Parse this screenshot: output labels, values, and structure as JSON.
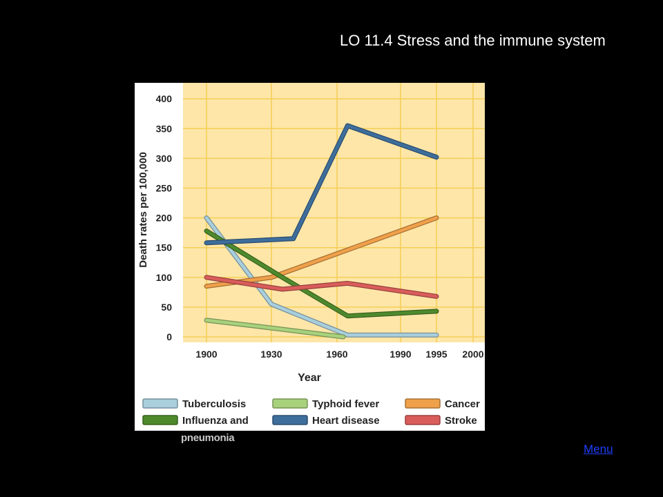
{
  "slide": {
    "title": "LO 11.4 Stress and the immune system",
    "menu_link": "Menu"
  },
  "colors": {
    "background": "#000000",
    "plot_background": "#FDE6A8",
    "grid": "#F5CE55",
    "menu_link": "#1F3FFF"
  },
  "chart_data": {
    "type": "line",
    "xlabel": "Year",
    "ylabel": "Death rates per 100,000",
    "xlim": [
      1900,
      2000
    ],
    "ylim": [
      0,
      400
    ],
    "x_ticks": [
      "1900",
      "1930",
      "1960",
      "1990",
      "1995",
      "2000"
    ],
    "x_tick_values": [
      1900,
      1930,
      1960,
      1990,
      1995,
      2000
    ],
    "y_ticks": [
      "0",
      "50",
      "100",
      "150",
      "200",
      "250",
      "300",
      "350",
      "400"
    ],
    "y_tick_values": [
      0,
      50,
      100,
      150,
      200,
      250,
      300,
      350,
      400
    ],
    "grid": true,
    "legend_position": "bottom",
    "series": [
      {
        "name": "Tuberculosis",
        "color": "#A9CEDC",
        "x": [
          1900,
          1930,
          1965,
          1995
        ],
        "y": [
          200,
          55,
          3,
          3
        ]
      },
      {
        "name": "Typhoid fever",
        "color": "#A8D17C",
        "x": [
          1900,
          1930,
          1963
        ],
        "y": [
          28,
          15,
          0
        ]
      },
      {
        "name": "Cancer",
        "color": "#EFA04A",
        "x": [
          1900,
          1930,
          1995
        ],
        "y": [
          85,
          100,
          200
        ]
      },
      {
        "name": "Influenza and pneumonia",
        "color": "#4E8A2C",
        "x": [
          1900,
          1935,
          1965,
          1995
        ],
        "y": [
          178,
          100,
          35,
          43
        ]
      },
      {
        "name": "Heart disease",
        "color": "#3E6E9C",
        "x": [
          1900,
          1940,
          1965,
          1995
        ],
        "y": [
          158,
          165,
          355,
          302
        ]
      },
      {
        "name": "Stroke",
        "color": "#D95D5A",
        "x": [
          1900,
          1935,
          1965,
          1995
        ],
        "y": [
          100,
          80,
          90,
          68
        ]
      }
    ],
    "legend": [
      {
        "label": "Tuberculosis",
        "color": "#A9CEDC"
      },
      {
        "label": "Typhoid fever",
        "color": "#A8D17C"
      },
      {
        "label": "Cancer",
        "color": "#EFA04A"
      },
      {
        "label": "Influenza and",
        "color": "#4E8A2C"
      },
      {
        "label": "Heart disease",
        "color": "#3E6E9C"
      },
      {
        "label": "Stroke",
        "color": "#D95D5A"
      }
    ],
    "legend_overflow_text": "pneumonia"
  }
}
